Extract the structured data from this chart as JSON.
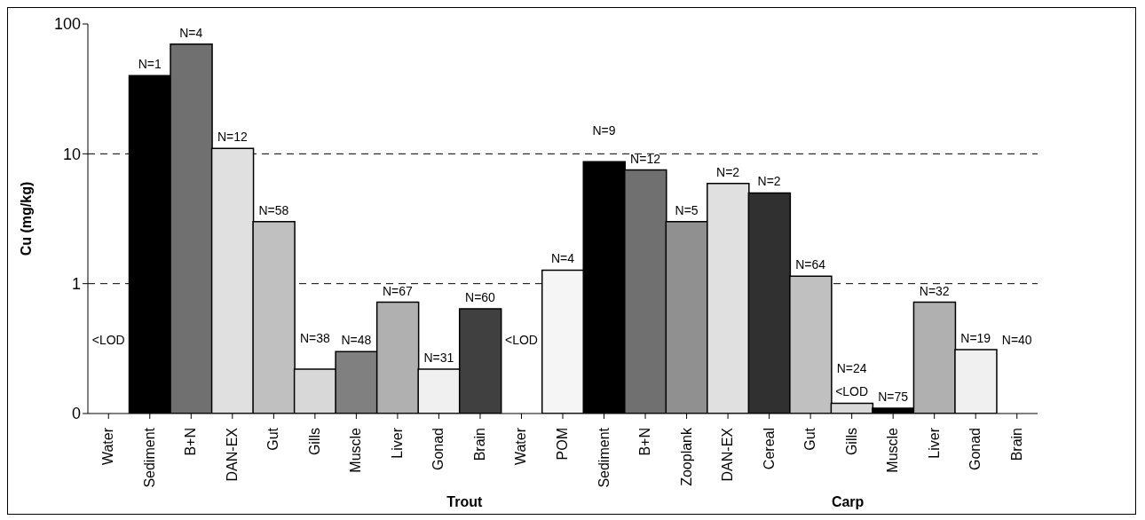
{
  "chart_data": {
    "type": "bar",
    "ylabel": "Cu (mg/kg)",
    "categories": [
      "Water",
      "Sediment",
      "B+N",
      "DAN-EX",
      "Gut",
      "Gills",
      "Muscle",
      "Liver",
      "Gonad",
      "Brain",
      "Water",
      "POM",
      "Sediment",
      "B+N",
      "Zooplank",
      "DAN-EX",
      "Cereal",
      "Gut",
      "Gills",
      "Muscle",
      "Liver",
      "Gonad",
      "Brain"
    ],
    "values": [
      null,
      40,
      70,
      11,
      3.0,
      0.22,
      0.3,
      0.72,
      0.22,
      0.64,
      null,
      1.27,
      8.7,
      7.5,
      3.0,
      5.9,
      5.0,
      1.14,
      0.12,
      0.11,
      0.72,
      0.31,
      null
    ],
    "colors": [
      "#ffffff",
      "#000000",
      "#707070",
      "#e0e0e0",
      "#c0c0c0",
      "#d8d8d8",
      "#808080",
      "#b0b0b0",
      "#f0f0f0",
      "#404040",
      "#ffffff",
      "#f5f5f5",
      "#000000",
      "#707070",
      "#909090",
      "#e0e0e0",
      "#303030",
      "#c0c0c0",
      "#d8d8d8",
      "#000000",
      "#b0b0b0",
      "#f0f0f0",
      "#ffffff"
    ],
    "log": true,
    "ylim": [
      0.1,
      100
    ],
    "yticks": [
      {
        "value": 0.1,
        "label": "0"
      },
      1,
      10,
      100
    ],
    "grid": "y",
    "annotations": [
      "Trout",
      "Carp",
      "<LOD",
      "N=1",
      "N=4",
      "N=12",
      "N=58",
      "N=38",
      "N=48",
      "N=67",
      "N=31",
      "N=60",
      "<LOD",
      "N=4",
      "N=9",
      "N=12",
      "N=5",
      "N=2",
      "N=2",
      "N=64",
      "N=24",
      "<LOD",
      "N=75",
      "N=32",
      "N=19",
      "N=40"
    ]
  }
}
